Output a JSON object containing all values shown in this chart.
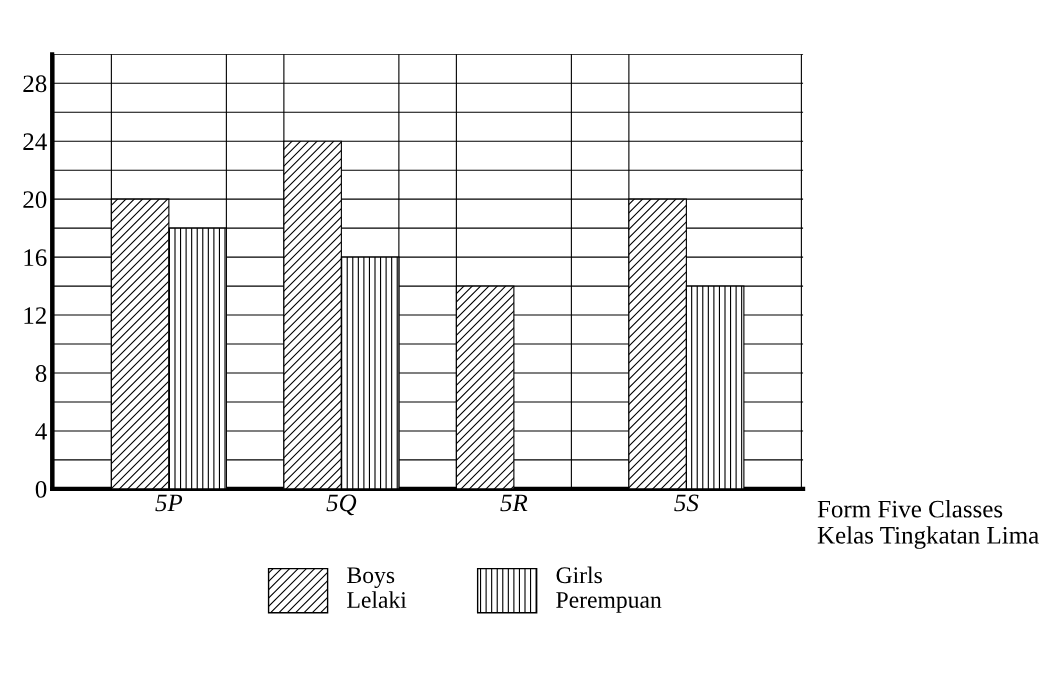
{
  "chart_data": {
    "type": "bar",
    "xlabel": "Form Five Classes\nKelas Tingkatan Lima",
    "categories": [
      "5P",
      "5Q",
      "5R",
      "5S"
    ],
    "series": [
      {
        "name": "Boys\nLelaki",
        "color": "#000000",
        "values": [
          20,
          24,
          14,
          20
        ]
      },
      {
        "name": "Girls\nPerempuan",
        "color": "#000000",
        "values": [
          18,
          16,
          null,
          14
        ]
      }
    ],
    "ylim": [
      0,
      30
    ],
    "yticks": [
      0,
      {
        "value": 2,
        "label": null
      },
      4,
      {
        "value": 6,
        "label": null
      },
      8,
      {
        "value": 10,
        "label": null
      },
      12,
      {
        "value": 14,
        "label": null
      },
      16,
      {
        "value": 18,
        "label": null
      },
      20,
      {
        "value": 22,
        "label": null
      },
      24,
      {
        "value": 26,
        "label": null
      },
      28,
      {
        "value": 30,
        "label": null
      }
    ],
    "grid": true,
    "legend": "bottom"
  }
}
